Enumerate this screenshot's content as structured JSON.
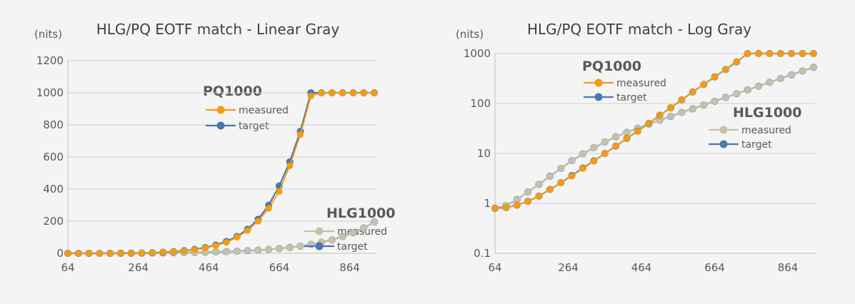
{
  "colors": {
    "pq_measured": "#f39c12",
    "pq_target": "#4a78b0",
    "hlg_measured": "#c9c0a8",
    "hlg_target": "#4a78b0"
  },
  "chart_data": [
    {
      "type": "line",
      "title": "HLG/PQ EOTF match - Linear Gray",
      "ylabel": "(nits)",
      "xlabel": "",
      "xlim": [
        64,
        940
      ],
      "ylim": [
        0,
        1200
      ],
      "x_ticks": [
        "64",
        "264",
        "464",
        "664",
        "864"
      ],
      "y_ticks": [
        "0",
        "200",
        "400",
        "600",
        "800",
        "1000",
        "1200"
      ],
      "y_scale": "linear",
      "grid": true,
      "groups": [
        {
          "name": "PQ1000",
          "series": [
            {
              "name": "measured",
              "color_key": "pq_measured",
              "x": [
                64,
                94,
                124,
                154,
                184,
                214,
                244,
                274,
                304,
                334,
                364,
                394,
                424,
                454,
                484,
                514,
                544,
                574,
                604,
                634,
                664,
                694,
                724,
                754,
                784,
                814,
                844,
                874,
                904,
                934
              ],
              "y": [
                0,
                0,
                0,
                0.1,
                0.2,
                0.6,
                1.2,
                2.2,
                3.7,
                6,
                9.5,
                14.8,
                22,
                33.2,
                49,
                68,
                100,
                142,
                200,
                280,
                385,
                545,
                740,
                980,
                1000,
                1000,
                1000,
                1000,
                1000,
                1000
              ]
            },
            {
              "name": "target",
              "color_key": "pq_target",
              "x": [
                64,
                94,
                124,
                154,
                184,
                214,
                244,
                274,
                304,
                334,
                364,
                394,
                424,
                454,
                484,
                514,
                544,
                574,
                604,
                634,
                664,
                694,
                724,
                754,
                784,
                814,
                844,
                874,
                904,
                934
              ],
              "y": [
                0,
                0,
                0,
                0.1,
                0.2,
                0.6,
                1.2,
                2.3,
                4,
                6.5,
                10.5,
                16.5,
                24.5,
                36,
                52,
                74,
                105,
                150,
                212,
                300,
                420,
                570,
                760,
                1000,
                1000,
                1000,
                1000,
                1000,
                1000,
                1000
              ]
            }
          ]
        },
        {
          "name": "HLG1000",
          "series": [
            {
              "name": "measured",
              "color_key": "hlg_measured",
              "x": [
                64,
                94,
                124,
                154,
                184,
                214,
                244,
                274,
                304,
                334,
                364,
                394,
                424,
                454,
                484,
                514,
                544,
                574,
                604,
                634,
                664,
                694,
                724,
                754,
                784,
                814,
                844,
                874,
                904,
                934
              ],
              "y": [
                0,
                0,
                0,
                0,
                0.1,
                0.3,
                0.6,
                1,
                1.7,
                2.6,
                3.5,
                4.6,
                5.7,
                7.2,
                8.8,
                10.7,
                13,
                16,
                19.5,
                24,
                30,
                37,
                45,
                56,
                69,
                84,
                104,
                128,
                158,
                195
              ]
            },
            {
              "name": "target",
              "color_key": "hlg_target",
              "x": [
                64,
                94,
                124,
                154,
                184,
                214,
                244,
                274,
                304,
                334,
                364,
                394,
                424,
                454,
                484,
                514,
                544,
                574,
                604,
                634,
                664,
                694,
                724,
                754,
                784,
                814,
                844,
                874,
                904,
                934
              ],
              "y": [
                0,
                0,
                0,
                0,
                0.1,
                0.3,
                0.6,
                1,
                1.7,
                2.6,
                3.5,
                4.6,
                5.7,
                7.2,
                8.8,
                10.7,
                13,
                16,
                19.5,
                24,
                30,
                37,
                45,
                56,
                69,
                84,
                104,
                128,
                158,
                195
              ]
            }
          ]
        }
      ]
    },
    {
      "type": "line",
      "title": "HLG/PQ EOTF match - Log Gray",
      "ylabel": "(nits)",
      "xlabel": "",
      "xlim": [
        64,
        940
      ],
      "ylim": [
        0.1,
        1000
      ],
      "x_ticks": [
        "64",
        "264",
        "464",
        "664",
        "864"
      ],
      "y_ticks": [
        "0.1",
        "1",
        "10",
        "100",
        "1000"
      ],
      "y_scale": "log",
      "grid": true,
      "groups": [
        {
          "name": "PQ1000",
          "series": [
            {
              "name": "measured",
              "color_key": "pq_measured",
              "x": [
                64,
                94,
                124,
                154,
                184,
                214,
                244,
                274,
                304,
                334,
                364,
                394,
                424,
                454,
                484,
                514,
                544,
                574,
                604,
                634,
                664,
                694,
                724,
                754,
                784,
                814,
                844,
                874,
                904,
                934
              ],
              "y": [
                0.8,
                0.82,
                0.92,
                1.1,
                1.4,
                1.9,
                2.6,
                3.5,
                5,
                7,
                10,
                14,
                20,
                28,
                40,
                58,
                82,
                118,
                170,
                240,
                340,
                480,
                680,
                1000,
                1000,
                1000,
                1000,
                1000,
                1000,
                1000
              ]
            },
            {
              "name": "target",
              "color_key": "pq_target",
              "x": [
                64,
                94,
                124,
                154,
                184,
                214,
                244,
                274,
                304,
                334,
                364,
                394,
                424,
                454,
                484,
                514,
                544,
                574,
                604,
                634,
                664,
                694,
                724,
                754,
                784,
                814,
                844,
                874,
                904,
                934
              ],
              "y": [
                0.8,
                0.82,
                0.92,
                1.1,
                1.4,
                1.9,
                2.6,
                3.6,
                5.1,
                7.1,
                10,
                14,
                20,
                28,
                40,
                58,
                82,
                118,
                170,
                240,
                340,
                480,
                680,
                1000,
                1000,
                1000,
                1000,
                1000,
                1000,
                1000
              ]
            }
          ]
        },
        {
          "name": "HLG1000",
          "series": [
            {
              "name": "measured",
              "color_key": "hlg_measured",
              "x": [
                64,
                94,
                124,
                154,
                184,
                214,
                244,
                274,
                304,
                334,
                364,
                394,
                424,
                454,
                484,
                514,
                544,
                574,
                604,
                634,
                664,
                694,
                724,
                754,
                784,
                814,
                844,
                874,
                904,
                934
              ],
              "y": [
                0.8,
                0.9,
                1.2,
                1.7,
                2.4,
                3.5,
                5,
                7.2,
                9.8,
                13,
                17,
                21.5,
                26.5,
                32,
                38.5,
                46,
                55,
                66,
                78,
                93,
                111,
                132,
                157,
                187,
                222,
                265,
                315,
                375,
                445,
                530
              ]
            },
            {
              "name": "target",
              "color_key": "hlg_target",
              "x": [
                64,
                94,
                124,
                154,
                184,
                214,
                244,
                274,
                304,
                334,
                364,
                394,
                424,
                454,
                484,
                514,
                544,
                574,
                604,
                634,
                664,
                694,
                724,
                754,
                784,
                814,
                844,
                874,
                904,
                934
              ],
              "y": [
                0.8,
                0.9,
                1.2,
                1.7,
                2.4,
                3.5,
                5,
                7.2,
                9.8,
                13,
                17,
                21.5,
                26.5,
                32,
                38.5,
                46,
                55,
                66,
                78,
                93,
                111,
                132,
                157,
                187,
                222,
                265,
                315,
                375,
                445,
                530
              ]
            }
          ]
        }
      ]
    }
  ]
}
